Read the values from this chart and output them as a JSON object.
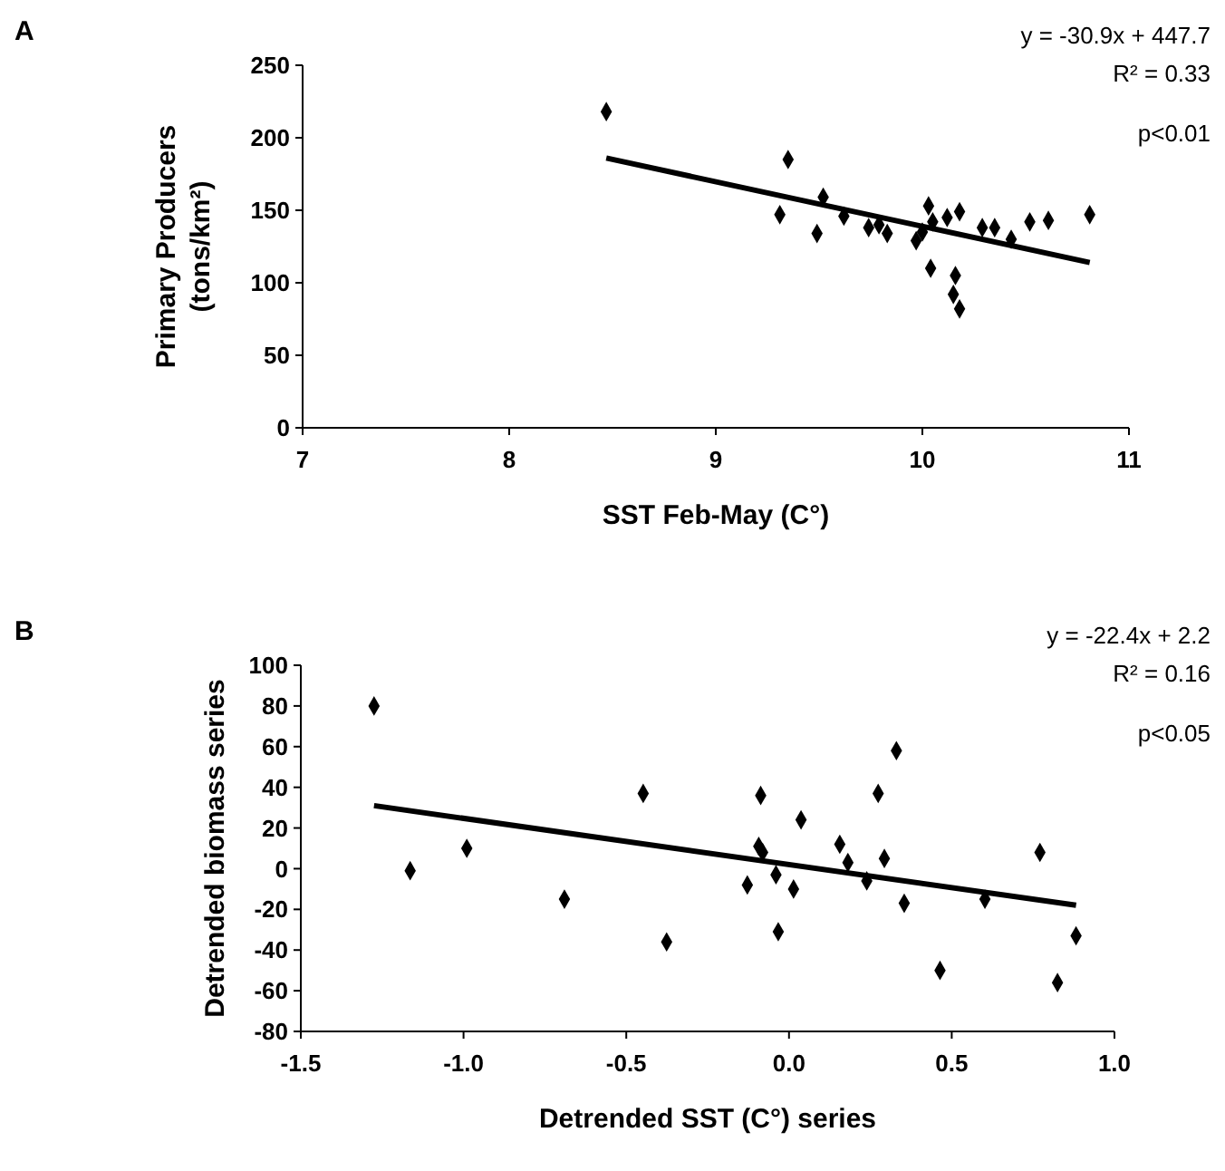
{
  "chart_data": [
    {
      "type": "scatter",
      "xlabel": "SST Feb-May (C°)",
      "ylabel": "Primary Producers (tons/km²)",
      "xlim": [
        7,
        11
      ],
      "xticks": [
        7,
        8,
        9,
        10,
        11
      ],
      "ylim": [
        0,
        250
      ],
      "yticks": [
        0,
        50,
        100,
        150,
        200,
        250
      ],
      "grid": false,
      "annotations": [
        "A",
        "y = -30.9x + 447.7",
        "R² = 0.33",
        "p<0.01"
      ],
      "series": [
        {
          "marker": "diamond",
          "color": "#000000",
          "x": [
            8.47,
            9.31,
            9.35,
            9.49,
            9.52,
            9.62,
            9.74,
            9.79,
            9.83,
            9.97,
            10.0,
            10.03,
            10.04,
            10.05,
            10.12,
            10.15,
            10.16,
            10.18,
            10.18,
            10.29,
            10.35,
            10.43,
            10.52,
            10.61,
            10.81
          ],
          "values": [
            218,
            147,
            185,
            134,
            159,
            146,
            138,
            140,
            134,
            129,
            135,
            153,
            110,
            142,
            145,
            92,
            105,
            82,
            149,
            138,
            138,
            130,
            142,
            143,
            147
          ]
        },
        {
          "type": "line",
          "marker": "none",
          "color": "#000000",
          "x": [
            8.47,
            10.81
          ],
          "values": [
            186,
            114
          ]
        }
      ]
    },
    {
      "type": "scatter",
      "xlabel": "Detrended SST (C°) series",
      "ylabel": "Detrended biomass series",
      "xlim": [
        -1.5,
        1.0
      ],
      "xticks": [
        {
          "value": -1.5,
          "label": "-1.5"
        },
        {
          "value": -1.0,
          "label": "-1.0"
        },
        {
          "value": -0.5,
          "label": "-0.5"
        },
        {
          "value": 0,
          "label": "0.0"
        },
        {
          "value": 0.5,
          "label": "0.5"
        },
        {
          "value": 1.0,
          "label": "1.0"
        }
      ],
      "ylim": [
        -80,
        100
      ],
      "yticks": [
        -80,
        -60,
        -40,
        -20,
        0,
        20,
        40,
        60,
        80,
        100
      ],
      "grid": false,
      "annotations": [
        "B",
        "y = -22.4x + 2.2",
        "R² = 0.16",
        "p<0.05"
      ],
      "series": [
        {
          "marker": "diamond",
          "color": "#000000",
          "x": [
            -1.275,
            -1.164,
            -0.99,
            -0.69,
            -0.448,
            -0.376,
            -0.128,
            -0.093,
            -0.087,
            -0.081,
            -0.04,
            -0.033,
            0.014,
            0.037,
            0.156,
            0.181,
            0.239,
            0.274,
            0.293,
            0.33,
            0.354,
            0.464,
            0.602,
            0.771,
            0.825,
            0.882
          ],
          "values": [
            80,
            -1,
            10,
            -15,
            37,
            -36,
            -8,
            11,
            36,
            8,
            -3,
            -31,
            -10,
            24,
            12,
            3,
            -6,
            37,
            5,
            58,
            -17,
            -50,
            -15,
            8,
            -56,
            -33
          ]
        },
        {
          "type": "line",
          "marker": "none",
          "color": "#000000",
          "x": [
            -1.275,
            0.882
          ],
          "values": [
            31,
            -18
          ]
        }
      ]
    }
  ]
}
